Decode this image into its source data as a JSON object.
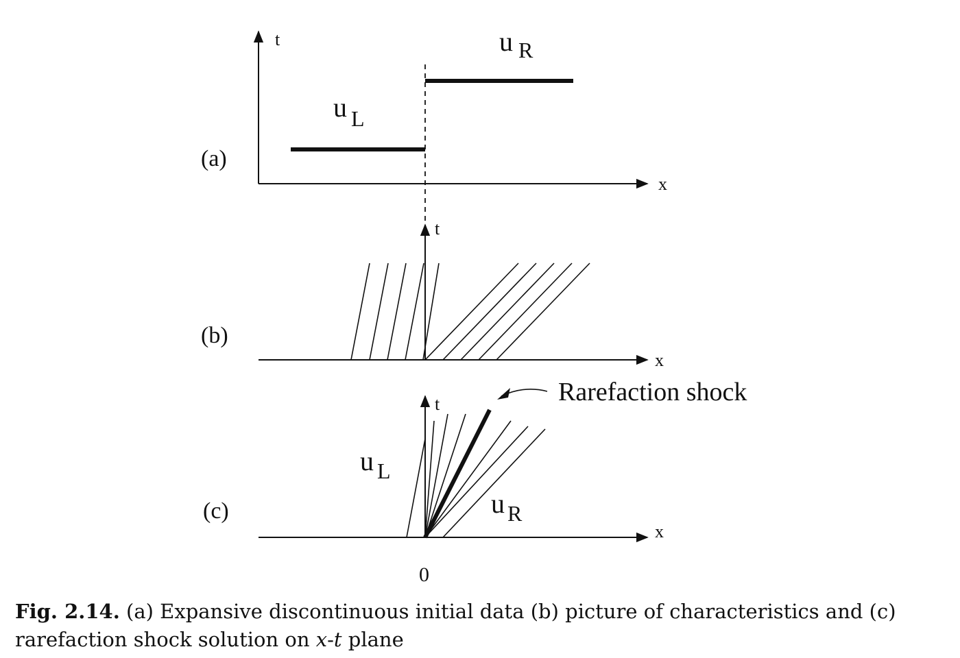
{
  "panel_labels": {
    "a": "(a)",
    "b": "(b)",
    "c": "(c)"
  },
  "axis_labels": {
    "t": "t",
    "x": "x"
  },
  "states": {
    "u_main": "u",
    "L_sub": "L",
    "R_sub": "R"
  },
  "origin_label": "0",
  "annotation": "Rarefaction shock",
  "caption": {
    "label": "Fig. 2.14.",
    "text_1": "(a) Expansive discontinuous initial data (b) picture of characteristics and (c) rarefaction shock solution on ",
    "x_var": "x",
    "dash": "-",
    "t_var": "t",
    "text_2": " plane"
  }
}
